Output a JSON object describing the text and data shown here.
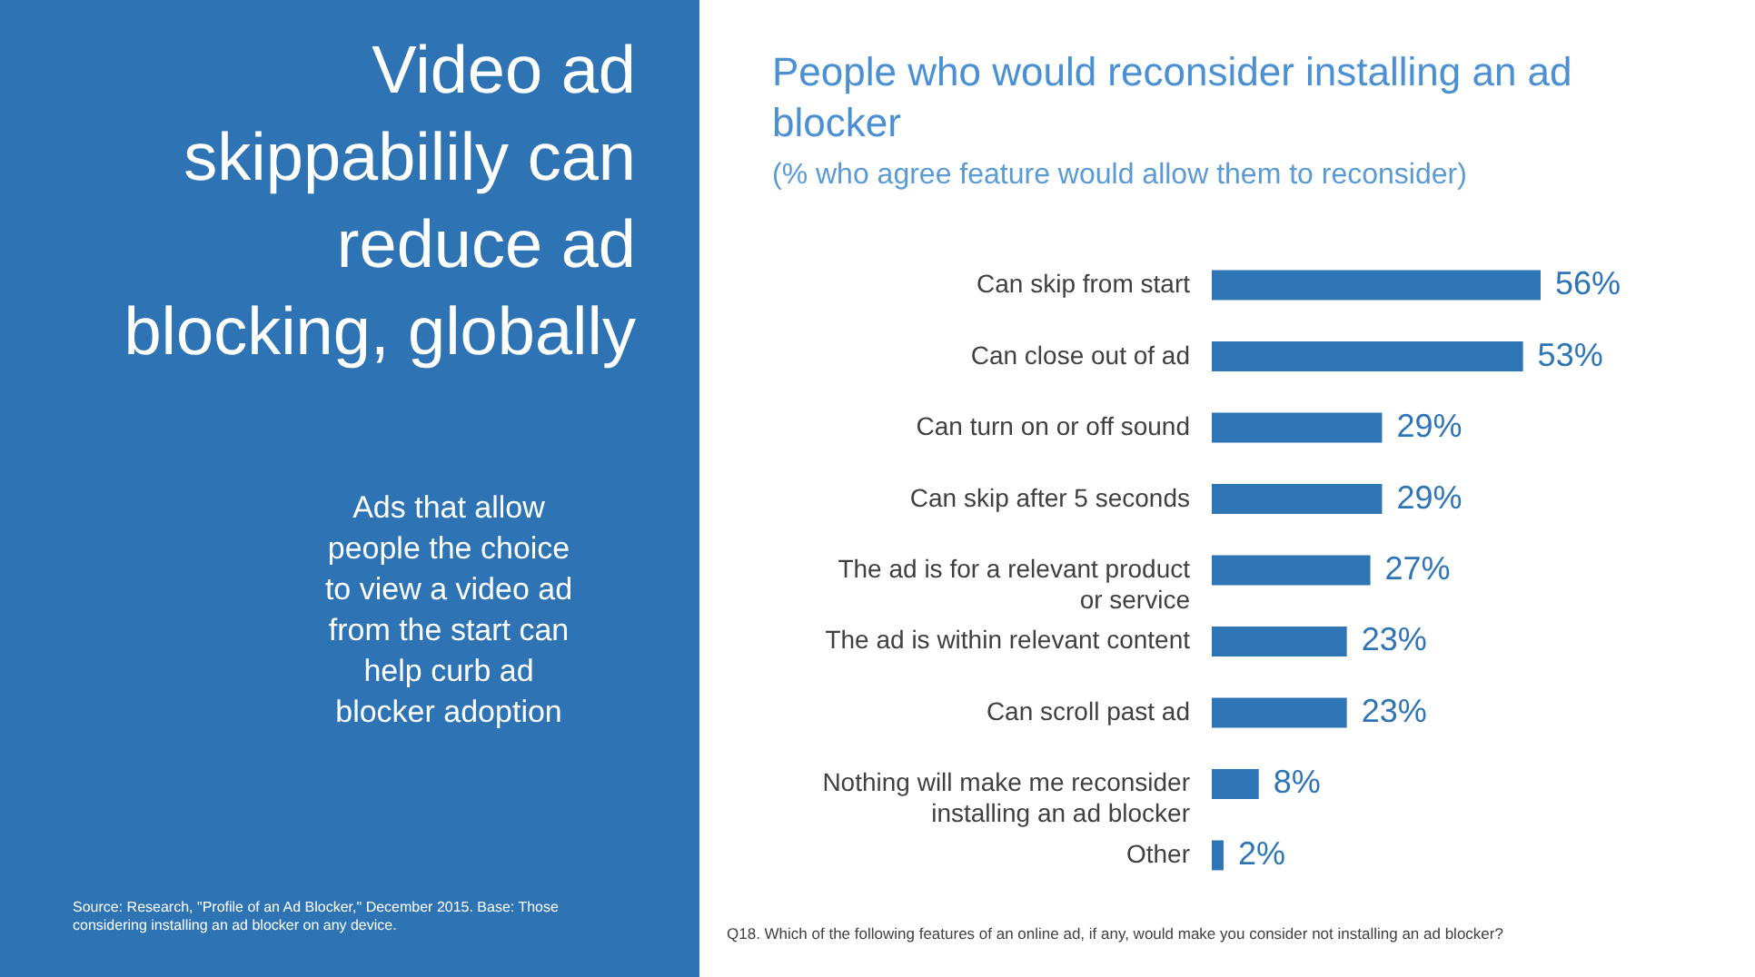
{
  "chart_data": {
    "type": "bar",
    "orientation": "horizontal",
    "title": "People who would reconsider installing an ad blocker",
    "subtitle": "(% who agree feature would allow them to reconsider)",
    "categories": [
      "Can skip from start",
      "Can close out of ad",
      "Can turn on or off sound",
      "Can skip after 5 seconds",
      "The ad is for a relevant product or service",
      "The ad is within relevant content",
      "Can scroll past ad",
      "Nothing will make me reconsider installing an ad blocker",
      "Other"
    ],
    "values": [
      56,
      53,
      29,
      29,
      27,
      23,
      23,
      8,
      2
    ],
    "value_labels": [
      "56%",
      "53%",
      "29%",
      "29%",
      "27%",
      "23%",
      "23%",
      "8%",
      "2%"
    ],
    "color": "#2e75b6",
    "annotations": [
      "Video ad skippabilily can reduce ad blocking, globally",
      "Ads that allow people the choice to view a video ad from the start can help curb ad blocker adoption",
      "Source: Research, \"Profile of an Ad Blocker,\" December 2015. Base: Those considering installing an ad blocker on any device.",
      "Q18. Which of the following features of an online ad, if any, would make you consider not installing an ad blocker?"
    ]
  }
}
